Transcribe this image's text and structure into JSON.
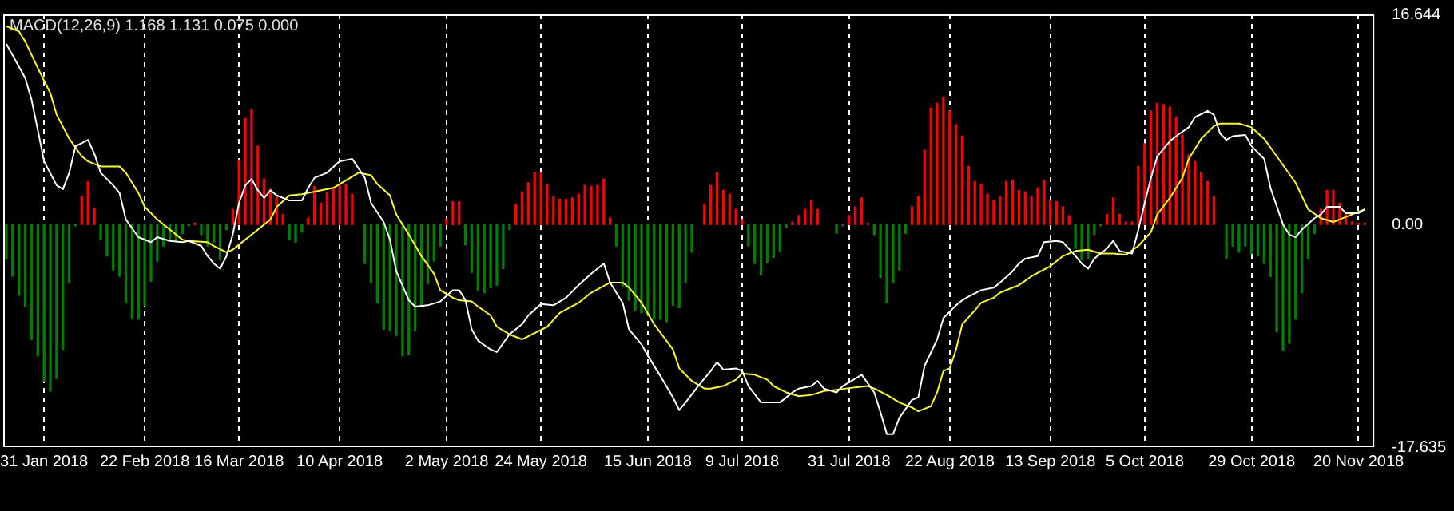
{
  "chart_data": {
    "type": "bar",
    "title": "MACD(12,26,9) 1.168 1.131 0.075 0.000",
    "legend": false,
    "grid": "x",
    "marker": "none",
    "categories": [
      null,
      null,
      null,
      null,
      null,
      null,
      "31 Jan 2018",
      null,
      null,
      null,
      null,
      null,
      null,
      null,
      null,
      null,
      null,
      null,
      null,
      null,
      null,
      null,
      "22 Feb 2018",
      null,
      null,
      null,
      null,
      null,
      null,
      null,
      null,
      null,
      null,
      null,
      null,
      null,
      null,
      "16 Mar 2018",
      null,
      null,
      null,
      null,
      null,
      null,
      null,
      null,
      null,
      null,
      null,
      null,
      null,
      null,
      null,
      "10 Apr 2018",
      null,
      null,
      null,
      null,
      null,
      null,
      null,
      null,
      null,
      null,
      null,
      null,
      null,
      null,
      null,
      null,
      "2 May 2018",
      null,
      null,
      null,
      null,
      null,
      null,
      null,
      null,
      null,
      null,
      null,
      null,
      null,
      null,
      "24 May 2018",
      null,
      null,
      null,
      null,
      null,
      null,
      null,
      null,
      null,
      null,
      null,
      null,
      null,
      null,
      null,
      null,
      "15 Jun 2018",
      null,
      null,
      null,
      null,
      null,
      null,
      null,
      null,
      null,
      null,
      null,
      null,
      null,
      null,
      "9 Jul 2018",
      null,
      null,
      null,
      null,
      null,
      null,
      null,
      null,
      null,
      null,
      null,
      null,
      null,
      null,
      null,
      null,
      "31 Jul 2018",
      null,
      null,
      null,
      null,
      null,
      null,
      null,
      null,
      null,
      null,
      null,
      null,
      null,
      null,
      null,
      "22 Aug 2018",
      null,
      null,
      null,
      null,
      null,
      null,
      null,
      null,
      null,
      null,
      null,
      null,
      null,
      null,
      null,
      "13 Sep 2018",
      null,
      null,
      null,
      null,
      null,
      null,
      null,
      null,
      null,
      null,
      null,
      null,
      null,
      null,
      "5 Oct 2018",
      null,
      null,
      null,
      null,
      null,
      null,
      null,
      null,
      null,
      null,
      null,
      null,
      null,
      null,
      null,
      null,
      "29 Oct 2018",
      null,
      null,
      null,
      null,
      null,
      null,
      null,
      null,
      null,
      null,
      null,
      null,
      null,
      null,
      null,
      null,
      "20 Nov 2018",
      null,
      null
    ],
    "ylim": [
      -17.635,
      16.644
    ],
    "yticks": [
      16.644,
      {
        "value": 0,
        "label": "0.00"
      },
      -17.635
    ],
    "series": [
      {
        "values": [
          -2.7,
          -4.1,
          -5.6,
          -6.5,
          -9.1,
          -10.4,
          -12.4,
          -13.2,
          -12.2,
          -9.9,
          -4.6,
          -0.1,
          2.2,
          3.4,
          1.3,
          -1.2,
          -2.5,
          -3.6,
          -4.1,
          -6.2,
          -7.4,
          -7.5,
          -6.4,
          -4.5,
          -2.9,
          -1.7,
          -1.3,
          -1.3,
          -0.7,
          -0.1,
          0.1,
          -0.8,
          -1.7,
          -1.4,
          -2.8,
          -0.4,
          1.2,
          5.1,
          8.4,
          9.1,
          6.2,
          3.6,
          2.8,
          2.2,
          0.8,
          -1.2,
          -1.4,
          -0.6,
          0.5,
          3.0,
          1.7,
          2.5,
          2.9,
          3.1,
          3.2,
          2.4,
          null,
          -3.1,
          -4.6,
          -6.2,
          -8.3,
          -8.4,
          -8.8,
          -10.4,
          -10.3,
          -8.4,
          -6.5,
          -4.7,
          -2.9,
          -1.7,
          0.4,
          1.8,
          1.8,
          -1.6,
          -3.8,
          -5.2,
          -5.4,
          -5.0,
          -4.8,
          -3.5,
          -0.4,
          1.6,
          2.6,
          3.3,
          4.1,
          4.1,
          3.2,
          2.2,
          2.0,
          2.0,
          2.1,
          2.4,
          3.1,
          3.0,
          3.1,
          3.6,
          0.5,
          -1.7,
          -4.9,
          -6.0,
          -6.8,
          -7.0,
          -7.2,
          -7.5,
          -7.5,
          -7.7,
          -6.4,
          -6.6,
          -4.6,
          -2.2,
          null,
          1.6,
          3.1,
          4.1,
          2.7,
          2.4,
          1.2,
          0.4,
          -1.7,
          -3.1,
          -4.0,
          -3.0,
          -2.6,
          -2.1,
          -0.2,
          0.2,
          0.7,
          1.2,
          1.9,
          1.2,
          null,
          null,
          -0.7,
          -0.1,
          0.7,
          1.4,
          2.1,
          0.1,
          -0.8,
          -4.2,
          -6.2,
          -4.6,
          -3.6,
          -0.7,
          1.4,
          2.2,
          5.9,
          9.2,
          9.6,
          10.1,
          9.0,
          7.9,
          7.0,
          4.6,
          3.4,
          3.2,
          2.4,
          1.9,
          2.2,
          3.4,
          3.5,
          2.7,
          2.6,
          2.2,
          2.9,
          3.5,
          1.9,
          1.8,
          1.4,
          0.7,
          -1.9,
          -2.8,
          -2.7,
          -0.8,
          -0.1,
          0.8,
          2.1,
          0.8,
          0.2,
          0.2,
          4.6,
          6.4,
          9.0,
          9.6,
          9.5,
          9.3,
          8.5,
          7.1,
          5.5,
          5.0,
          4.1,
          3.4,
          2.2,
          null,
          -2.7,
          -1.7,
          -2.2,
          -1.7,
          -2.3,
          -2.5,
          -3.1,
          -4.1,
          -8.5,
          -10.0,
          -9.4,
          -7.5,
          -5.4,
          -2.7,
          -0.7,
          1.2,
          2.7,
          2.7,
          1.7,
          0.9,
          0.2,
          0.1,
          0.1,
          null
        ],
        "colors": [
          "#008000",
          "#008000",
          "#008000",
          "#008000",
          "#008000",
          "#008000",
          "#008000",
          "#008000",
          "#008000",
          "#008000",
          "#008000",
          "#008000",
          "#ff0000",
          "#ff0000",
          "#ff0000",
          "#008000",
          "#008000",
          "#008000",
          "#008000",
          "#008000",
          "#008000",
          "#008000",
          "#008000",
          "#008000",
          "#008000",
          "#008000",
          "#008000",
          "#008000",
          "#008000",
          "#008000",
          "#ff0000",
          "#008000",
          "#008000",
          "#008000",
          "#008000",
          "#008000",
          "#ff0000",
          "#ff0000",
          "#ff0000",
          "#ff0000",
          "#ff0000",
          "#ff0000",
          "#ff0000",
          "#ff0000",
          "#ff0000",
          "#008000",
          "#008000",
          "#008000",
          "#ff0000",
          "#ff0000",
          "#ff0000",
          "#ff0000",
          "#ff0000",
          "#ff0000",
          "#ff0000",
          "#ff0000",
          "#ff0000",
          "#008000",
          "#008000",
          "#008000",
          "#008000",
          "#008000",
          "#008000",
          "#008000",
          "#008000",
          "#008000",
          "#008000",
          "#008000",
          "#008000",
          "#008000",
          "#ff0000",
          "#ff0000",
          "#ff0000",
          "#008000",
          "#008000",
          "#008000",
          "#008000",
          "#008000",
          "#008000",
          "#008000",
          "#008000",
          "#ff0000",
          "#ff0000",
          "#ff0000",
          "#ff0000",
          "#ff0000",
          "#ff0000",
          "#ff0000",
          "#ff0000",
          "#ff0000",
          "#ff0000",
          "#ff0000",
          "#ff0000",
          "#ff0000",
          "#ff0000",
          "#ff0000",
          "#ff0000",
          "#008000",
          "#008000",
          "#008000",
          "#008000",
          "#008000",
          "#008000",
          "#008000",
          "#008000",
          "#008000",
          "#008000",
          "#008000",
          "#008000",
          "#008000",
          "#ff0000",
          "#ff0000",
          "#ff0000",
          "#ff0000",
          "#ff0000",
          "#ff0000",
          "#ff0000",
          "#ff0000",
          "#008000",
          "#008000",
          "#008000",
          "#008000",
          "#008000",
          "#008000",
          "#008000",
          "#ff0000",
          "#ff0000",
          "#ff0000",
          "#ff0000",
          "#ff0000",
          "#ff0000",
          "#ff0000",
          "#008000",
          "#008000",
          "#ff0000",
          "#ff0000",
          "#ff0000",
          "#ff0000",
          "#008000",
          "#008000",
          "#008000",
          "#008000",
          "#008000",
          "#008000",
          "#ff0000",
          "#ff0000",
          "#ff0000",
          "#ff0000",
          "#ff0000",
          "#ff0000",
          "#ff0000",
          "#ff0000",
          "#ff0000",
          "#ff0000",
          "#ff0000",
          "#ff0000",
          "#ff0000",
          "#ff0000",
          "#ff0000",
          "#ff0000",
          "#ff0000",
          "#ff0000",
          "#ff0000",
          "#ff0000",
          "#ff0000",
          "#ff0000",
          "#ff0000",
          "#ff0000",
          "#ff0000",
          "#ff0000",
          "#008000",
          "#008000",
          "#008000",
          "#008000",
          "#008000",
          "#ff0000",
          "#ff0000",
          "#ff0000",
          "#ff0000",
          "#ff0000",
          "#ff0000",
          "#ff0000",
          "#ff0000",
          "#ff0000",
          "#ff0000",
          "#ff0000",
          "#ff0000",
          "#ff0000",
          "#ff0000",
          "#ff0000",
          "#ff0000",
          "#ff0000",
          "#ff0000",
          "#ff0000",
          "#008000",
          "#008000",
          "#008000",
          "#008000",
          "#008000",
          "#008000",
          "#008000",
          "#008000",
          "#008000",
          "#008000",
          "#008000",
          "#008000",
          "#008000",
          "#008000",
          "#008000",
          "#ff0000",
          "#ff0000",
          "#ff0000",
          "#ff0000",
          "#ff0000",
          "#ff0000",
          "#ff0000",
          "#ff0000",
          "#ff0000"
        ]
      },
      {
        "type": "line",
        "color": "#ffffff",
        "values": [
          14.3,
          null,
          null,
          11.6,
          9.9,
          7.5,
          5.0,
          null,
          3.1,
          2.8,
          4.1,
          6.2,
          null,
          6.7,
          5.6,
          4.1,
          null,
          3.1,
          2.5,
          0.4,
          null,
          -1.0,
          null,
          -1.4,
          -1.0,
          null,
          -1.3,
          null,
          -1.4,
          -1.3,
          null,
          -1.7,
          -2.5,
          -3.1,
          -3.5,
          -2.5,
          -0.8,
          1.7,
          3.1,
          3.6,
          2.7,
          2.1,
          2.7,
          2.3,
          null,
          1.9,
          null,
          1.9,
          2.9,
          3.7,
          null,
          4.1,
          null,
          5.0,
          null,
          5.2,
          null,
          3.7,
          1.7,
          null,
          0.2,
          -1.2,
          -3.7,
          null,
          -6.0,
          -6.5,
          null,
          -6.4,
          null,
          -6.1,
          null,
          -5.2,
          -5.2,
          -6.0,
          -8.3,
          -9.2,
          null,
          -9.9,
          -10.1,
          null,
          -8.7,
          null,
          -7.9,
          -7.2,
          null,
          -6.3,
          null,
          -6.4,
          null,
          -5.8,
          null,
          -4.8,
          null,
          -3.9,
          null,
          -3.1,
          -4.6,
          null,
          -6.2,
          -8.3,
          null,
          -9.5,
          -10.4,
          null,
          -12.0,
          null,
          -13.7,
          -14.7,
          -14.1,
          null,
          -12.8,
          null,
          -11.6,
          -10.9,
          -11.5,
          null,
          -11.4,
          -11.6,
          -12.8,
          null,
          -14.1,
          null,
          -14.1,
          -14.1,
          null,
          -13.3,
          -13.0,
          null,
          -12.8,
          -12.4,
          -13.0,
          null,
          -13.3,
          -12.8,
          null,
          -12.2,
          -11.9,
          null,
          -13.3,
          -14.9,
          -16.6,
          -16.6,
          -15.3,
          null,
          -13.9,
          -13.7,
          -11.2,
          null,
          -9.1,
          -7.4,
          null,
          -6.4,
          -6.0,
          -5.7,
          null,
          -5.2,
          null,
          -5.0,
          -4.6,
          null,
          -3.7,
          -3.1,
          -2.7,
          null,
          -2.5,
          -1.4,
          null,
          -1.3,
          -1.4,
          null,
          -2.5,
          -3.1,
          -3.5,
          -2.7,
          null,
          -1.9,
          -1.3,
          -2.1,
          null,
          -2.3,
          -0.4,
          1.7,
          3.7,
          5.4,
          null,
          6.6,
          7.0,
          null,
          7.7,
          8.5,
          null,
          9.0,
          8.7,
          7.2,
          6.7,
          7.0,
          null,
          7.1,
          6.2,
          null,
          5.2,
          2.9,
          null,
          0.0,
          -0.8,
          -1.0,
          -0.4,
          null,
          0.5,
          0.8,
          1.4,
          null,
          1.4,
          0.9,
          null,
          0.9,
          1.2,
          null
        ]
      },
      {
        "type": "line",
        "color": "#ffff00",
        "values": [
          15.7,
          null,
          15.3,
          14.5,
          null,
          12.4,
          null,
          10.4,
          8.7,
          null,
          6.8,
          null,
          5.4,
          5.0,
          null,
          4.6,
          null,
          null,
          4.6,
          4.1,
          null,
          2.5,
          1.4,
          null,
          0.4,
          null,
          -0.4,
          null,
          -1.2,
          -1.3,
          null,
          null,
          -1.4,
          -1.7,
          null,
          -2.2,
          -2.0,
          null,
          -1.2,
          null,
          -0.4,
          null,
          0.4,
          1.4,
          null,
          2.3,
          null,
          2.4,
          null,
          2.6,
          null,
          null,
          2.9,
          null,
          3.5,
          null,
          4.1,
          null,
          3.9,
          3.2,
          null,
          2.3,
          0.8,
          null,
          -0.8,
          null,
          -2.5,
          null,
          -3.9,
          -5.2,
          null,
          -5.8,
          -6.0,
          null,
          -6.1,
          -6.5,
          null,
          -7.2,
          -8.1,
          null,
          -8.7,
          null,
          -9.1,
          null,
          -8.6,
          null,
          -8.1,
          null,
          -7.0,
          null,
          null,
          -6.2,
          null,
          -5.4,
          null,
          null,
          -4.6,
          null,
          -4.6,
          -5.0,
          null,
          -6.2,
          null,
          -7.9,
          null,
          null,
          -9.9,
          -11.4,
          null,
          -12.4,
          null,
          -13.0,
          -13.0,
          null,
          -12.8,
          null,
          -12.3,
          -11.8,
          null,
          -11.9,
          null,
          -12.3,
          -12.8,
          null,
          -13.3,
          null,
          -13.6,
          null,
          -13.5,
          null,
          -13.2,
          null,
          -13.1,
          null,
          null,
          -12.9,
          null,
          -12.8,
          -13.0,
          null,
          -13.5,
          null,
          -14.1,
          null,
          -14.5,
          -14.8,
          null,
          -14.4,
          -13.3,
          -11.6,
          -11.4,
          -9.9,
          -7.9,
          null,
          -6.8,
          -6.2,
          null,
          -5.8,
          -5.4,
          null,
          null,
          -4.8,
          null,
          -4.1,
          null,
          null,
          -3.3,
          null,
          -2.5,
          null,
          -2.1,
          null,
          -2.0,
          null,
          -2.3,
          null,
          -2.3,
          null,
          -2.4,
          null,
          -1.7,
          null,
          -0.6,
          0.8,
          null,
          2.1,
          null,
          3.7,
          5.2,
          null,
          6.8,
          null,
          7.8,
          8.0,
          null,
          null,
          8.0,
          null,
          7.7,
          null,
          6.8,
          null,
          5.4,
          null,
          null,
          3.3,
          null,
          1.2,
          null,
          0.5,
          null,
          0.2,
          null,
          0.6,
          null,
          null,
          1.2,
          null
        ]
      }
    ]
  }
}
